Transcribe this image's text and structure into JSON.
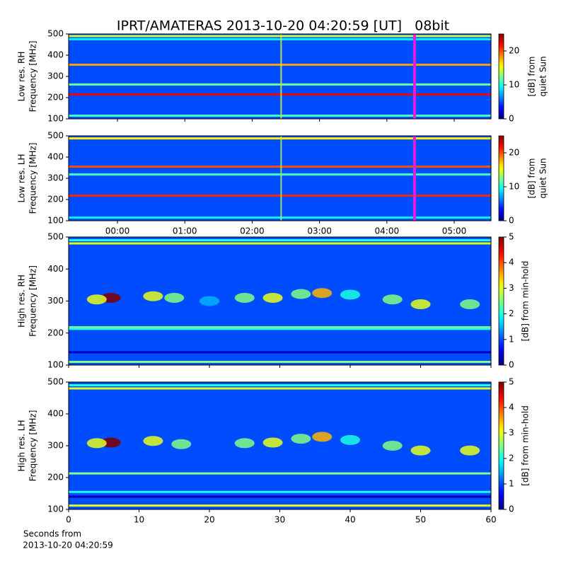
{
  "title": "IPRT/AMATERAS 2013-10-20 04:20:59 [UT]   08bit",
  "chart_data": [
    {
      "type": "heatmap",
      "ylabel": [
        "Low res. RH",
        "Frequency [MHz]"
      ],
      "clabel": [
        "[dB] from",
        "quiet Sun"
      ],
      "xlim": [
        -0.725,
        5.546
      ],
      "xticks": [
        {
          "value": 0,
          "label": "00:00"
        },
        {
          "value": 1,
          "label": "01:00"
        },
        {
          "value": 2,
          "label": "02:00"
        },
        {
          "value": 3,
          "label": "03:00"
        },
        {
          "value": 4,
          "label": "04:00"
        },
        {
          "value": 5,
          "label": "05:00"
        }
      ],
      "xtick_labels": false,
      "ylim": [
        100,
        500
      ],
      "yticks": [
        100,
        200,
        300,
        400,
        500
      ],
      "clim": [
        0,
        25
      ],
      "cticks": [
        0,
        10,
        20
      ],
      "background": 5,
      "bands": [
        {
          "freq": 490,
          "level": 14
        },
        {
          "freq": 475,
          "level": 9
        },
        {
          "freq": 355,
          "level": 18
        },
        {
          "freq": 262,
          "level": 12
        },
        {
          "freq": 215,
          "level": 22
        },
        {
          "freq": 115,
          "level": 11
        }
      ],
      "spikes": [
        {
          "x": 2.43,
          "level": 15
        }
      ],
      "marker": {
        "x": 4.41,
        "color": "#e020e0"
      }
    },
    {
      "type": "heatmap",
      "ylabel": [
        "Low res. LH",
        "Frequency [MHz]"
      ],
      "clabel": [
        "[dB] from",
        "quiet Sun"
      ],
      "xlim": [
        -0.725,
        5.546
      ],
      "xticks": [
        {
          "value": 0,
          "label": "00:00"
        },
        {
          "value": 1,
          "label": "01:00"
        },
        {
          "value": 2,
          "label": "02:00"
        },
        {
          "value": 3,
          "label": "03:00"
        },
        {
          "value": 4,
          "label": "04:00"
        },
        {
          "value": 5,
          "label": "05:00"
        }
      ],
      "xtick_labels": true,
      "ylim": [
        100,
        500
      ],
      "yticks": [
        100,
        200,
        300,
        400,
        500
      ],
      "clim": [
        0,
        25
      ],
      "cticks": [
        0,
        10,
        20
      ],
      "background": 5,
      "bands": [
        {
          "freq": 488,
          "level": 16
        },
        {
          "freq": 355,
          "level": 20
        },
        {
          "freq": 318,
          "level": 11
        },
        {
          "freq": 218,
          "level": 21
        },
        {
          "freq": 115,
          "level": 9
        }
      ],
      "spikes": [
        {
          "x": 2.43,
          "level": 14
        }
      ],
      "marker": {
        "x": 4.41,
        "color": "#e020e0"
      }
    },
    {
      "type": "heatmap",
      "ylabel": [
        "High res. RH",
        "Frequency [MHz]"
      ],
      "clabel": [
        "[dB] from min-hold"
      ],
      "xlim": [
        0,
        60
      ],
      "xticks": [
        0,
        10,
        20,
        30,
        40,
        50,
        60
      ],
      "xtick_labels": false,
      "ylim": [
        100,
        500
      ],
      "yticks": [
        100,
        200,
        300,
        400,
        500
      ],
      "clim": [
        0,
        5
      ],
      "cticks": [
        0,
        1,
        2,
        3,
        4,
        5
      ],
      "background": 1,
      "bands": [
        {
          "freq": 490,
          "level": 2
        },
        {
          "freq": 480,
          "level": 3
        },
        {
          "freq": 218,
          "level": 2.5
        },
        {
          "freq": 213,
          "level": 2
        },
        {
          "freq": 140,
          "level": 0.3
        },
        {
          "freq": 110,
          "level": 2.5
        }
      ],
      "bursts": [
        {
          "x": 6,
          "freq": 310,
          "level": 5
        },
        {
          "x": 4,
          "freq": 305,
          "level": 3
        },
        {
          "x": 12,
          "freq": 315,
          "level": 3
        },
        {
          "x": 15,
          "freq": 310,
          "level": 2.5
        },
        {
          "x": 20,
          "freq": 300,
          "level": 1.5
        },
        {
          "x": 25,
          "freq": 310,
          "level": 2.5
        },
        {
          "x": 29,
          "freq": 310,
          "level": 3
        },
        {
          "x": 33,
          "freq": 322,
          "level": 2.5
        },
        {
          "x": 36,
          "freq": 325,
          "level": 3.5
        },
        {
          "x": 40,
          "freq": 320,
          "level": 2
        },
        {
          "x": 46,
          "freq": 305,
          "level": 2.5
        },
        {
          "x": 50,
          "freq": 290,
          "level": 3
        },
        {
          "x": 57,
          "freq": 290,
          "level": 2.5
        }
      ]
    },
    {
      "type": "heatmap",
      "ylabel": [
        "High res. LH",
        "Frequency [MHz]"
      ],
      "clabel": [
        "[dB] from min-hold"
      ],
      "xlabel": [
        "Seconds from",
        "2013-10-20 04:20:59"
      ],
      "xlim": [
        0,
        60
      ],
      "xticks": [
        0,
        10,
        20,
        30,
        40,
        50,
        60
      ],
      "xtick_labels": true,
      "ylim": [
        100,
        500
      ],
      "yticks": [
        100,
        200,
        300,
        400,
        500
      ],
      "clim": [
        0,
        5
      ],
      "cticks": [
        0,
        1,
        2,
        3,
        4,
        5
      ],
      "background": 1,
      "bands": [
        {
          "freq": 490,
          "level": 2
        },
        {
          "freq": 480,
          "level": 3
        },
        {
          "freq": 213,
          "level": 2.5
        },
        {
          "freq": 155,
          "level": 2
        },
        {
          "freq": 140,
          "level": 0.3
        },
        {
          "freq": 112,
          "level": 3
        }
      ],
      "bursts": [
        {
          "x": 6,
          "freq": 310,
          "level": 5
        },
        {
          "x": 4,
          "freq": 308,
          "level": 3
        },
        {
          "x": 12,
          "freq": 315,
          "level": 3
        },
        {
          "x": 16,
          "freq": 305,
          "level": 2.5
        },
        {
          "x": 25,
          "freq": 308,
          "level": 2.5
        },
        {
          "x": 29,
          "freq": 310,
          "level": 3
        },
        {
          "x": 33,
          "freq": 322,
          "level": 2.5
        },
        {
          "x": 36,
          "freq": 328,
          "level": 3.5
        },
        {
          "x": 40,
          "freq": 318,
          "level": 2
        },
        {
          "x": 46,
          "freq": 300,
          "level": 2.5
        },
        {
          "x": 50,
          "freq": 285,
          "level": 3
        },
        {
          "x": 57,
          "freq": 285,
          "level": 3
        }
      ]
    }
  ]
}
